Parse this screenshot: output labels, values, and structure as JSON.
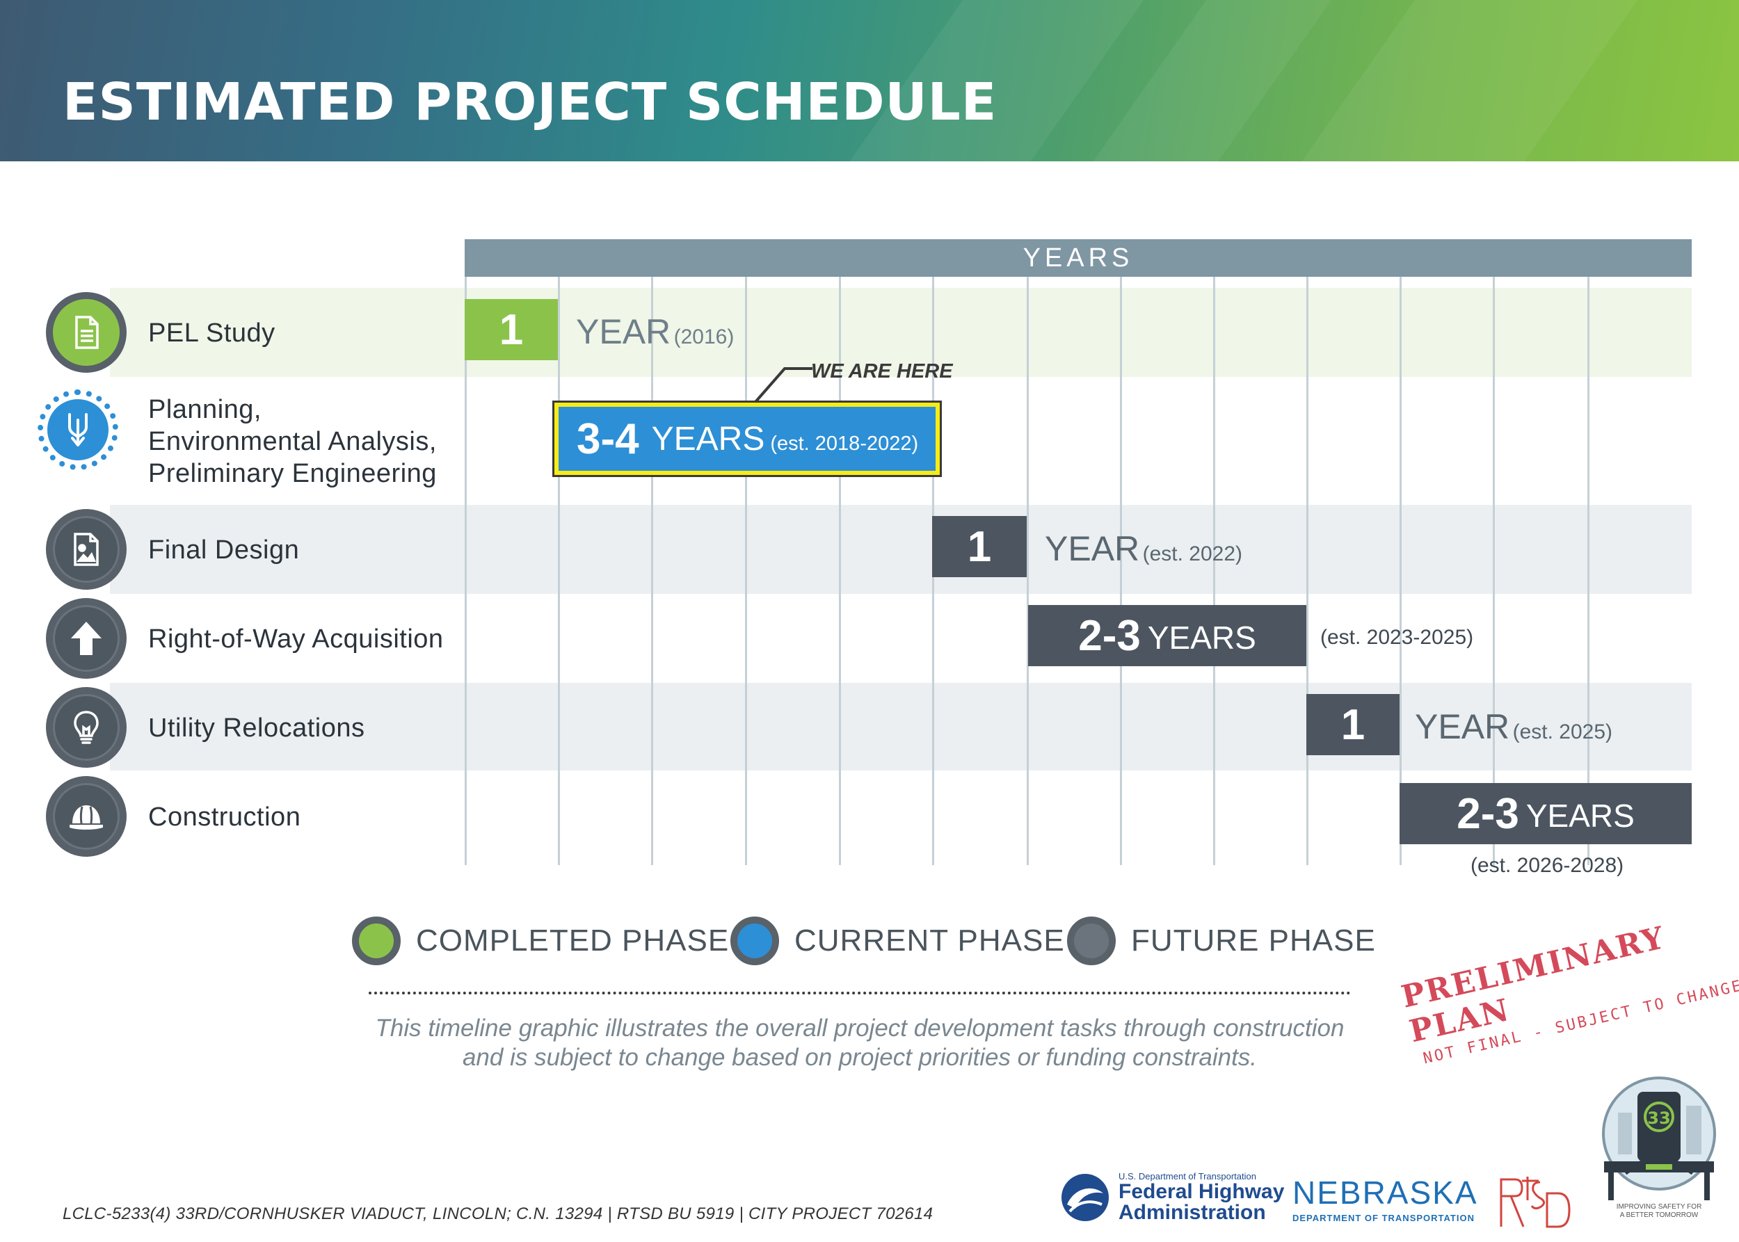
{
  "header": {
    "title": "ESTIMATED PROJECT SCHEDULE"
  },
  "timeline": {
    "axis_label": "YEARS",
    "annotation": "WE ARE HERE",
    "phases": [
      {
        "label_lines": [
          "PEL Study"
        ],
        "icon": "document-icon",
        "status": "completed",
        "num": "1",
        "unit": "YEAR",
        "range": "(2016)"
      },
      {
        "label_lines": [
          "Planning,",
          "Environmental Analysis,",
          "Preliminary Engineering"
        ],
        "icon": "merge-arrows-icon",
        "status": "current",
        "num": "3-4",
        "unit": "YEARS",
        "range": "(est. 2018-2022)"
      },
      {
        "label_lines": [
          "Final Design"
        ],
        "icon": "image-icon",
        "status": "future",
        "num": "1",
        "unit": "YEAR",
        "range": "(est. 2022)"
      },
      {
        "label_lines": [
          "Right-of-Way Acquisition"
        ],
        "icon": "up-arrow-icon",
        "status": "future",
        "num": "2-3",
        "unit": "YEARS",
        "range": "(est. 2023-2025)"
      },
      {
        "label_lines": [
          "Utility Relocations"
        ],
        "icon": "lightbulb-icon",
        "status": "future",
        "num": "1",
        "unit": "YEAR",
        "range": "(est. 2025)"
      },
      {
        "label_lines": [
          "Construction"
        ],
        "icon": "hard-hat-icon",
        "status": "future",
        "num": "2-3",
        "unit": "YEARS",
        "range": "(est. 2026-2028)"
      }
    ]
  },
  "legend": [
    {
      "label": "COMPLETED PHASE",
      "color": "#8bc34a"
    },
    {
      "label": "CURRENT PHASE",
      "color": "#2d8fd6"
    },
    {
      "label": "FUTURE PHASE",
      "color": "#6b747c"
    }
  ],
  "disclaimer": {
    "line1": "This timeline graphic illustrates the overall project development tasks through construction",
    "line2": "and is subject to change based on project priorities or funding constraints."
  },
  "stamp": {
    "line1": "PRELIMINARY PLAN",
    "line2": "NOT FINAL - SUBJECT TO CHANGE"
  },
  "footer": {
    "reference": "LCLC-5233(4) 33RD/CORNHUSKER VIADUCT, LINCOLN; C.N. 13294  |  RTSD BU 5919  |  CITY PROJECT 702614"
  },
  "logos": {
    "fhwa_small": "U.S. Department of Transportation",
    "fhwa_line1": "Federal Highway",
    "fhwa_line2": "Administration",
    "nebraska": "NEBRASKA",
    "nebraska_sub": "DEPARTMENT OF TRANSPORTATION",
    "rtsd": "RTSD",
    "viaduct_number": "33",
    "viaduct_tagline_1": "IMPROVING SAFETY FOR",
    "viaduct_tagline_2": "A BETTER TOMORROW"
  },
  "colors": {
    "completed": "#8bc34a",
    "current": "#2d8fd6",
    "future": "#4d5660",
    "highlight": "#f6ec17",
    "grid": "#c5d0d6"
  }
}
